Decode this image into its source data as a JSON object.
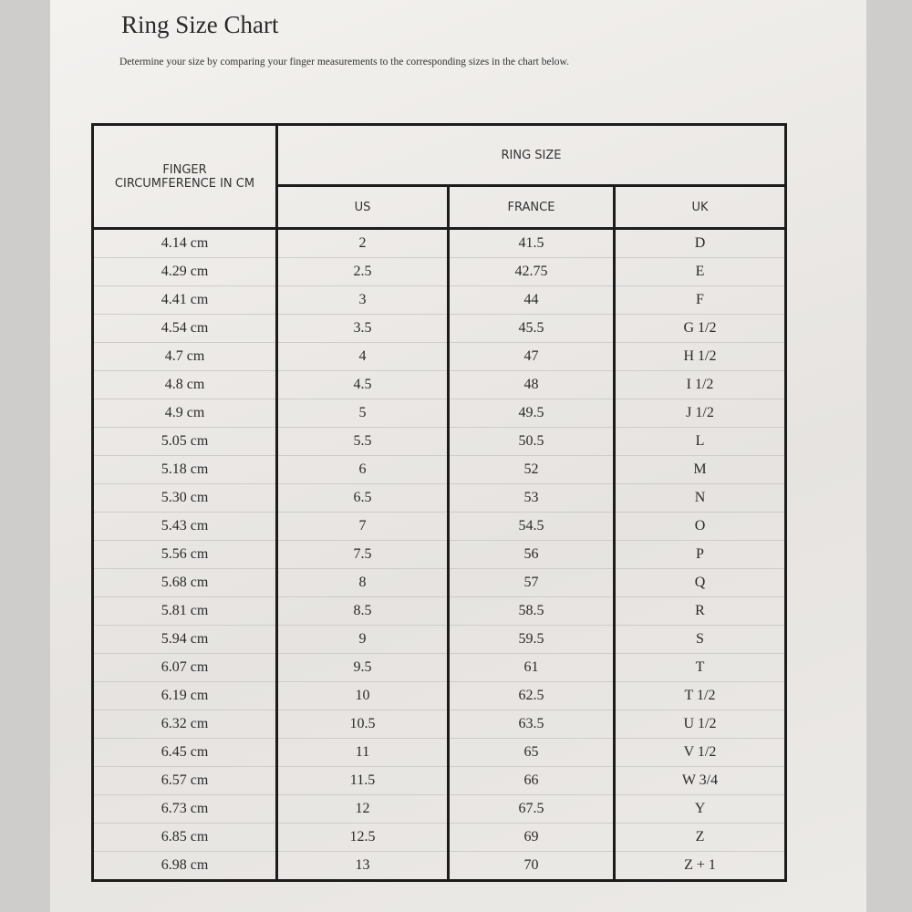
{
  "header": {
    "title": "Ring Size Chart",
    "subtitle": "Determine your size by comparing your finger measurements to the corresponding sizes in the chart below."
  },
  "table": {
    "first_header": "FINGER CIRCUMFERENCE IN CM",
    "group_header": "RING SIZE",
    "columns": [
      "US",
      "FRANCE",
      "UK"
    ],
    "rows": [
      [
        "4.14 cm",
        "2",
        "41.5",
        "D"
      ],
      [
        "4.29 cm",
        "2.5",
        "42.75",
        "E"
      ],
      [
        "4.41 cm",
        "3",
        "44",
        "F"
      ],
      [
        "4.54 cm",
        "3.5",
        "45.5",
        "G 1/2"
      ],
      [
        "4.7 cm",
        "4",
        "47",
        "H 1/2"
      ],
      [
        "4.8 cm",
        "4.5",
        "48",
        "I 1/2"
      ],
      [
        "4.9 cm",
        "5",
        "49.5",
        "J 1/2"
      ],
      [
        "5.05 cm",
        "5.5",
        "50.5",
        "L"
      ],
      [
        "5.18 cm",
        "6",
        "52",
        "M"
      ],
      [
        "5.30 cm",
        "6.5",
        "53",
        "N"
      ],
      [
        "5.43 cm",
        "7",
        "54.5",
        "O"
      ],
      [
        "5.56 cm",
        "7.5",
        "56",
        "P"
      ],
      [
        "5.68 cm",
        "8",
        "57",
        "Q"
      ],
      [
        "5.81 cm",
        "8.5",
        "58.5",
        "R"
      ],
      [
        "5.94 cm",
        "9",
        "59.5",
        "S"
      ],
      [
        "6.07 cm",
        "9.5",
        "61",
        "T"
      ],
      [
        "6.19 cm",
        "10",
        "62.5",
        "T 1/2"
      ],
      [
        "6.32 cm",
        "10.5",
        "63.5",
        "U 1/2"
      ],
      [
        "6.45 cm",
        "11",
        "65",
        "V 1/2"
      ],
      [
        "6.57 cm",
        "11.5",
        "66",
        "W 3/4"
      ],
      [
        "6.73 cm",
        "12",
        "67.5",
        "Y"
      ],
      [
        "6.85 cm",
        "12.5",
        "69",
        "Z"
      ],
      [
        "6.98 cm",
        "13",
        "70",
        "Z + 1"
      ]
    ]
  }
}
